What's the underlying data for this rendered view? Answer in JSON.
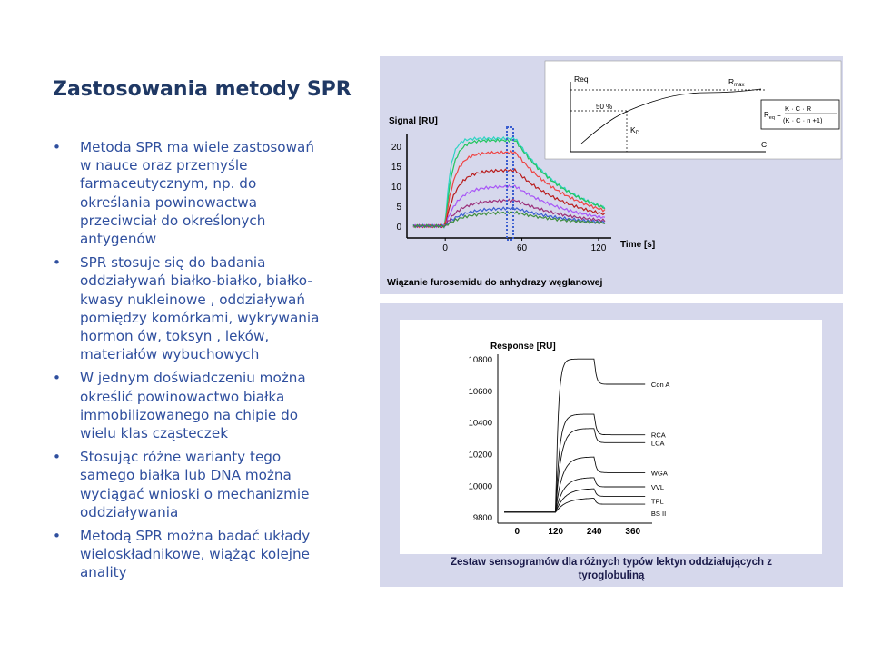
{
  "slide": {
    "title": "Zastosowania metody SPR",
    "bullet_char": "•",
    "bullets": [
      "Metoda SPR ma wiele zastosowań w nauce oraz przemyśle farmaceutycznym, np. do określania powinowactwa przeciwciał do określonych antygenów",
      "SPR stosuje się do badania oddziaływań białko-białko, białko-kwasy nukleinowe , oddziaływań pomiędzy komórkami, wykrywania hormon ów, toksyn , leków, materiałów wybuchowych",
      "W jednym doświadczeniu można określić powinowactwo białka immobilizowanego na chipie do wielu klas cząsteczek",
      "Stosując różne warianty tego samego białka lub DNA można wyciągać wnioski o mechanizmie oddziaływania",
      "Metodą SPR można badać układy wieloskładnikowe, wiążąc kolejne anality"
    ]
  },
  "figure_top": {
    "caption": "Wiązanie furosemidu do anhydrazy węglanowej",
    "chart_data": {
      "type": "line",
      "ylabel": "Signal [RU]",
      "xlabel": "Time [s]",
      "x_ticks": [
        "0",
        "60",
        "120"
      ],
      "y_ticks": [
        "0",
        "5",
        "10",
        "15",
        "20"
      ],
      "xlim": [
        -30,
        130
      ],
      "ylim": [
        -3,
        23
      ],
      "plateaus": [
        22,
        21.5,
        18.5,
        14,
        10,
        6.5,
        4.5,
        3.5
      ],
      "colors": [
        "#2ed3c4",
        "#22c55e",
        "#ef4444",
        "#b91c1c",
        "#a855f7",
        "#9b2f7a",
        "#3b5ed0",
        "#3f8f3f"
      ],
      "inj_start": 0,
      "inj_end": 55
    },
    "inset": {
      "ylabel": "Req",
      "xlabel": "C",
      "rmax_label": "R",
      "rmax_sub": "max",
      "half_label": "50 %",
      "kd_label": "K",
      "kd_sub": "D",
      "formula_lhs": "R",
      "formula_lhs_sub": "eq",
      "formula_num": "K · C · R",
      "formula_den": "(K · C · n +1)"
    }
  },
  "figure_bottom": {
    "caption_line1": "Zestaw sensogramów dla różnych typów lektyn oddziałujących z",
    "caption_line2": "tyroglobuliną",
    "chart_data": {
      "type": "line",
      "ylabel": "Response [RU]",
      "x_ticks": [
        "0",
        "120",
        "240",
        "360"
      ],
      "y_ticks": [
        "9800",
        "10000",
        "10200",
        "10400",
        "10600",
        "10800"
      ],
      "xlim": [
        -60,
        420
      ],
      "ylim": [
        9760,
        10830
      ],
      "series": [
        {
          "name": "Con A",
          "plateau": 10800,
          "end": 10640
        },
        {
          "name": "RCA",
          "plateau": 10450,
          "end": 10320
        },
        {
          "name": "LCA",
          "plateau": 10360,
          "end": 10270
        },
        {
          "name": "WGA",
          "plateau": 10180,
          "end": 10080
        },
        {
          "name": "VVL",
          "plateau": 10050,
          "end": 9990
        },
        {
          "name": "TPL",
          "plateau": 9980,
          "end": 9930
        },
        {
          "name": "BS II",
          "plateau": 9920,
          "end": 9880
        }
      ],
      "inj_start": 120,
      "inj_end": 240
    }
  }
}
